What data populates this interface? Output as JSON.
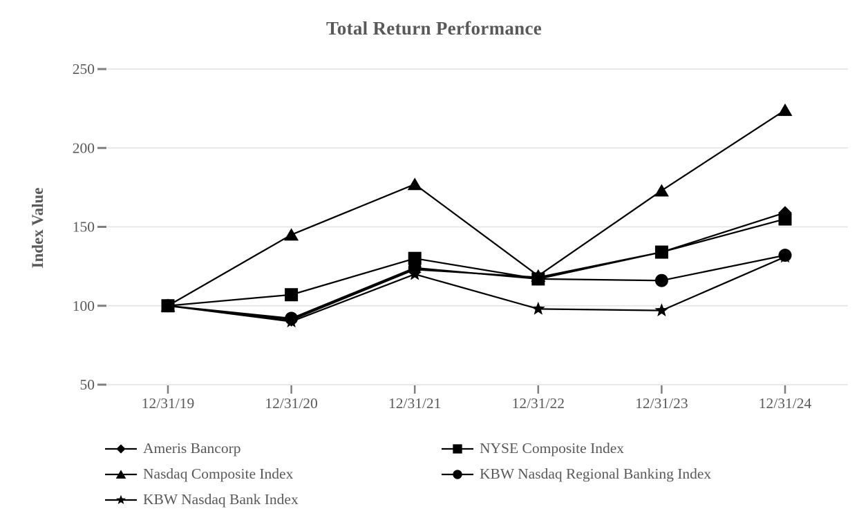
{
  "page": {
    "background": "#ffffff"
  },
  "chart_data": {
    "type": "line",
    "title": "Total Return Performance",
    "xlabel": "",
    "ylabel": "Index Value",
    "categories": [
      "12/31/19",
      "12/31/20",
      "12/31/21",
      "12/31/22",
      "12/31/23",
      "12/31/24"
    ],
    "series": [
      {
        "name": "Ameris Bancorp",
        "marker": "diamond",
        "color": "#000000",
        "values": [
          100,
          91,
          123,
          118,
          134,
          159
        ]
      },
      {
        "name": "NYSE Composite Index",
        "marker": "square",
        "color": "#000000",
        "values": [
          100,
          107,
          130,
          117,
          134,
          155
        ]
      },
      {
        "name": "Nasdaq Composite Index",
        "marker": "triangle",
        "color": "#000000",
        "values": [
          100,
          145,
          177,
          119,
          173,
          224
        ]
      },
      {
        "name": "KBW Nasdaq Regional Banking Index",
        "marker": "circle",
        "color": "#000000",
        "values": [
          100,
          92,
          124,
          117,
          116,
          132
        ]
      },
      {
        "name": "KBW Nasdaq Bank Index",
        "marker": "star",
        "color": "#000000",
        "values": [
          100,
          90,
          120,
          98,
          97,
          131
        ]
      }
    ],
    "y_ticks": [
      50,
      100,
      150,
      200,
      250
    ],
    "ylim": [
      50,
      250
    ],
    "grid": true,
    "legend_position": "bottom-two-columns",
    "draw_order": [
      2,
      0,
      4,
      3,
      1
    ],
    "grid_color": "#e2e2e2",
    "tick_color": "#7f7f7f",
    "text_color": "#595959"
  }
}
